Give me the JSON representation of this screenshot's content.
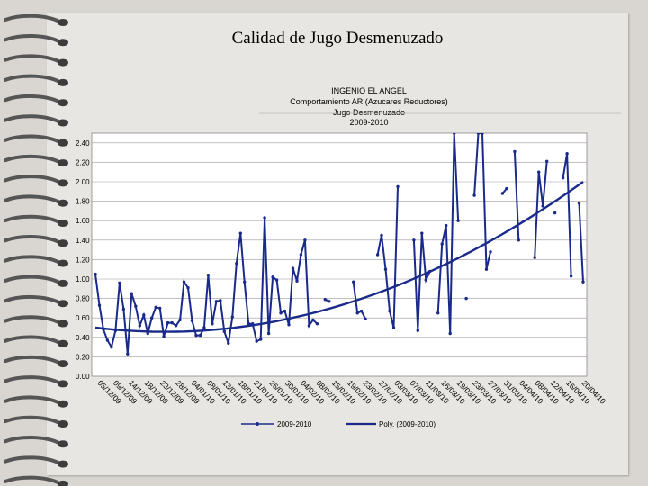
{
  "slide": {
    "title": "Calidad de Jugo Desmenuzado"
  },
  "chart_data": {
    "type": "line",
    "title_lines": [
      "INGENIO EL ANGEL",
      "Comportamiento AR (Azucares Reductores)",
      "Jugo Desmenuzado",
      "2009-2010"
    ],
    "ylim": [
      0,
      2.5
    ],
    "yticks": [
      "0.00",
      "0.20",
      "0.40",
      "0.60",
      "0.80",
      "1.00",
      "1.20",
      "1.40",
      "1.60",
      "1.80",
      "2.00",
      "2.20",
      "2.40"
    ],
    "x_tick_labels": [
      "05/12/09",
      "09/12/09",
      "14/12/09",
      "18/12/09",
      "23/12/09",
      "28/12/09",
      "04/01/10",
      "08/01/10",
      "13/01/10",
      "18/01/10",
      "21/01/10",
      "26/01/10",
      "30/01/10",
      "04/02/10",
      "08/02/10",
      "15/02/10",
      "19/02/10",
      "23/02/10",
      "27/02/10",
      "03/03/10",
      "07/03/10",
      "11/03/10",
      "16/03/10",
      "19/03/10",
      "23/03/10",
      "27/03/10",
      "31/03/10",
      "04/04/10",
      "08/04/10",
      "12/04/10",
      "16/04/10",
      "20/04/10"
    ],
    "grid": true,
    "legend_position": "bottom",
    "series": [
      {
        "name": "2009-2010",
        "color": "#1a2a8a",
        "values": [
          1.05,
          0.73,
          0.48,
          0.37,
          0.3,
          0.47,
          0.96,
          0.69,
          0.23,
          0.85,
          0.72,
          0.52,
          0.63,
          0.44,
          0.6,
          0.71,
          0.7,
          0.41,
          0.55,
          0.55,
          0.52,
          0.58,
          0.97,
          0.91,
          0.57,
          0.42,
          0.42,
          0.5,
          1.04,
          0.54,
          0.77,
          0.78,
          0.46,
          0.34,
          0.61,
          1.16,
          1.47,
          0.97,
          0.54,
          0.54,
          0.36,
          0.38,
          1.63,
          0.44,
          1.02,
          0.99,
          0.65,
          0.67,
          0.53,
          1.11,
          0.98,
          1.25,
          1.4,
          0.52,
          0.58,
          0.54,
          null,
          0.79,
          0.77,
          null,
          null,
          null,
          null,
          null,
          0.97,
          0.65,
          0.67,
          0.59,
          null,
          null,
          1.25,
          1.45,
          1.1,
          0.67,
          0.5,
          1.95,
          null,
          null,
          null,
          1.4,
          0.47,
          1.47,
          0.99,
          1.08,
          null,
          0.65,
          1.36,
          1.55,
          0.44,
          2.5,
          1.6,
          null,
          0.8,
          null,
          1.86,
          2.5,
          2.5,
          1.1,
          1.28,
          null,
          null,
          1.88,
          1.93,
          null,
          2.31,
          1.4,
          null,
          null,
          null,
          1.22,
          2.1,
          1.75,
          2.21,
          null,
          1.68,
          null,
          2.04,
          2.29,
          1.03,
          null,
          1.78,
          0.97
        ]
      },
      {
        "name": "Poly. (2009-2010)",
        "color": "#1a2a8a",
        "trend_coefficients": [
          0.5,
          -0.6,
          2.1
        ]
      }
    ]
  }
}
